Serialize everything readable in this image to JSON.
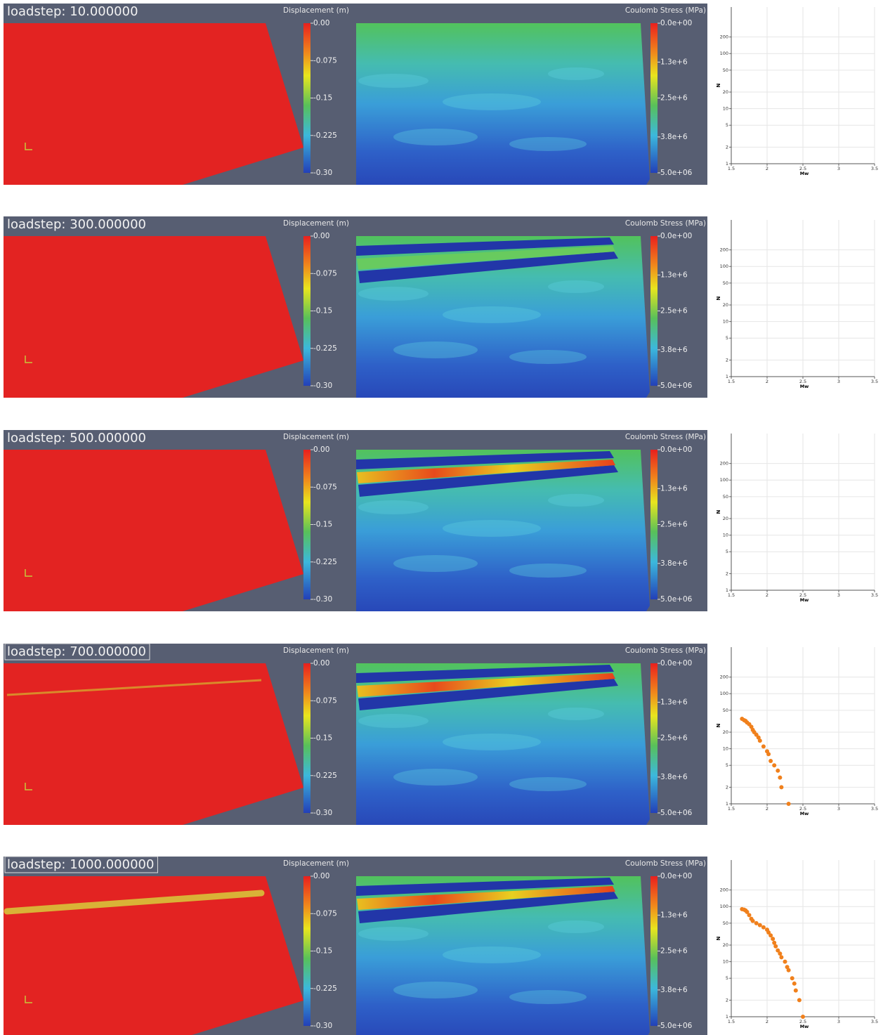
{
  "panels": [
    {
      "loadstep": "loadstep: 10.000000"
    },
    {
      "loadstep": "loadstep: 300.000000"
    },
    {
      "loadstep": "loadstep: 500.000000"
    },
    {
      "loadstep": "loadstep: 700.000000"
    },
    {
      "loadstep": "loadstep: 1000.000000"
    }
  ],
  "displacement": {
    "title": "Displacement (m)",
    "clim": [
      0,
      -0.3
    ],
    "ticks": [
      {
        "value": 0,
        "label": "0.00"
      },
      -0.075,
      -0.15,
      -0.225,
      {
        "value": -0.3,
        "label": "-0.30"
      }
    ]
  },
  "coulomb": {
    "title": "Coulomb Stress (MPa)",
    "clim": [
      0,
      5000000
    ],
    "ticks": [
      {
        "value": 0,
        "label": "0.0e+00"
      },
      {
        "value": 1300000,
        "label": "1.3e+6"
      },
      {
        "value": 2500000,
        "label": "2.5e+6"
      },
      {
        "value": 3800000,
        "label": "3.8e+6"
      },
      {
        "value": 5000000,
        "label": "5.0e+06"
      }
    ]
  },
  "chart_data": [
    {
      "type": "scatter",
      "x_label": "Mw",
      "y_label": "N",
      "color": "#f0801c",
      "x": [],
      "values": [],
      "xlim": [
        1.5,
        3.5
      ],
      "ylim": [
        1,
        700
      ],
      "xticks": [
        1.5,
        2,
        2.5,
        3,
        3.5
      ],
      "yticks": [
        1,
        2,
        5,
        10,
        20,
        50,
        100,
        200
      ],
      "log_y": true,
      "grid": true
    },
    {
      "type": "scatter",
      "x_label": "Mw",
      "y_label": "N",
      "color": "#f0801c",
      "x": [],
      "values": [],
      "xlim": [
        1.5,
        3.5
      ],
      "ylim": [
        1,
        700
      ],
      "xticks": [
        1.5,
        2,
        2.5,
        3,
        3.5
      ],
      "yticks": [
        1,
        2,
        5,
        10,
        20,
        50,
        100,
        200
      ],
      "log_y": true,
      "grid": true
    },
    {
      "type": "scatter",
      "x_label": "Mw",
      "y_label": "N",
      "color": "#f0801c",
      "x": [],
      "values": [],
      "xlim": [
        1.5,
        3.5
      ],
      "ylim": [
        1,
        700
      ],
      "xticks": [
        1.5,
        2,
        2.5,
        3,
        3.5
      ],
      "yticks": [
        1,
        2,
        5,
        10,
        20,
        50,
        100,
        200
      ],
      "log_y": true,
      "grid": true
    },
    {
      "type": "scatter",
      "x_label": "Mw",
      "y_label": "N",
      "color": "#f0801c",
      "x": [
        1.65,
        1.68,
        1.7,
        1.72,
        1.75,
        1.78,
        1.8,
        1.82,
        1.85,
        1.88,
        1.9,
        1.95,
        2.0,
        2.02,
        2.05,
        2.1,
        2.15,
        2.18,
        2.2,
        2.3
      ],
      "values": [
        35,
        33,
        32,
        30,
        28,
        25,
        22,
        20,
        18,
        16,
        14,
        11,
        9,
        8,
        6,
        5,
        4,
        3,
        2,
        1
      ],
      "xlim": [
        1.5,
        3.5
      ],
      "ylim": [
        1,
        700
      ],
      "xticks": [
        1.5,
        2,
        2.5,
        3,
        3.5
      ],
      "yticks": [
        1,
        2,
        5,
        10,
        20,
        50,
        100,
        200
      ],
      "log_y": true,
      "grid": true
    },
    {
      "type": "scatter",
      "x_label": "Mw",
      "y_label": "N",
      "color": "#f0801c",
      "x": [
        1.65,
        1.68,
        1.7,
        1.72,
        1.75,
        1.78,
        1.8,
        1.85,
        1.9,
        1.95,
        2.0,
        2.02,
        2.05,
        2.08,
        2.1,
        2.12,
        2.15,
        2.18,
        2.2,
        2.25,
        2.28,
        2.3,
        2.35,
        2.38,
        2.4,
        2.45,
        2.5
      ],
      "values": [
        90,
        88,
        85,
        80,
        70,
        60,
        55,
        50,
        46,
        42,
        38,
        34,
        30,
        26,
        22,
        19,
        16,
        14,
        12,
        10,
        8,
        7,
        5,
        4,
        3,
        2,
        1
      ],
      "xlim": [
        1.5,
        3.5
      ],
      "ylim": [
        1,
        700
      ],
      "xticks": [
        1.5,
        2,
        2.5,
        3,
        3.5
      ],
      "yticks": [
        1,
        2,
        5,
        10,
        20,
        50,
        100,
        200
      ],
      "log_y": true,
      "grid": true
    }
  ]
}
